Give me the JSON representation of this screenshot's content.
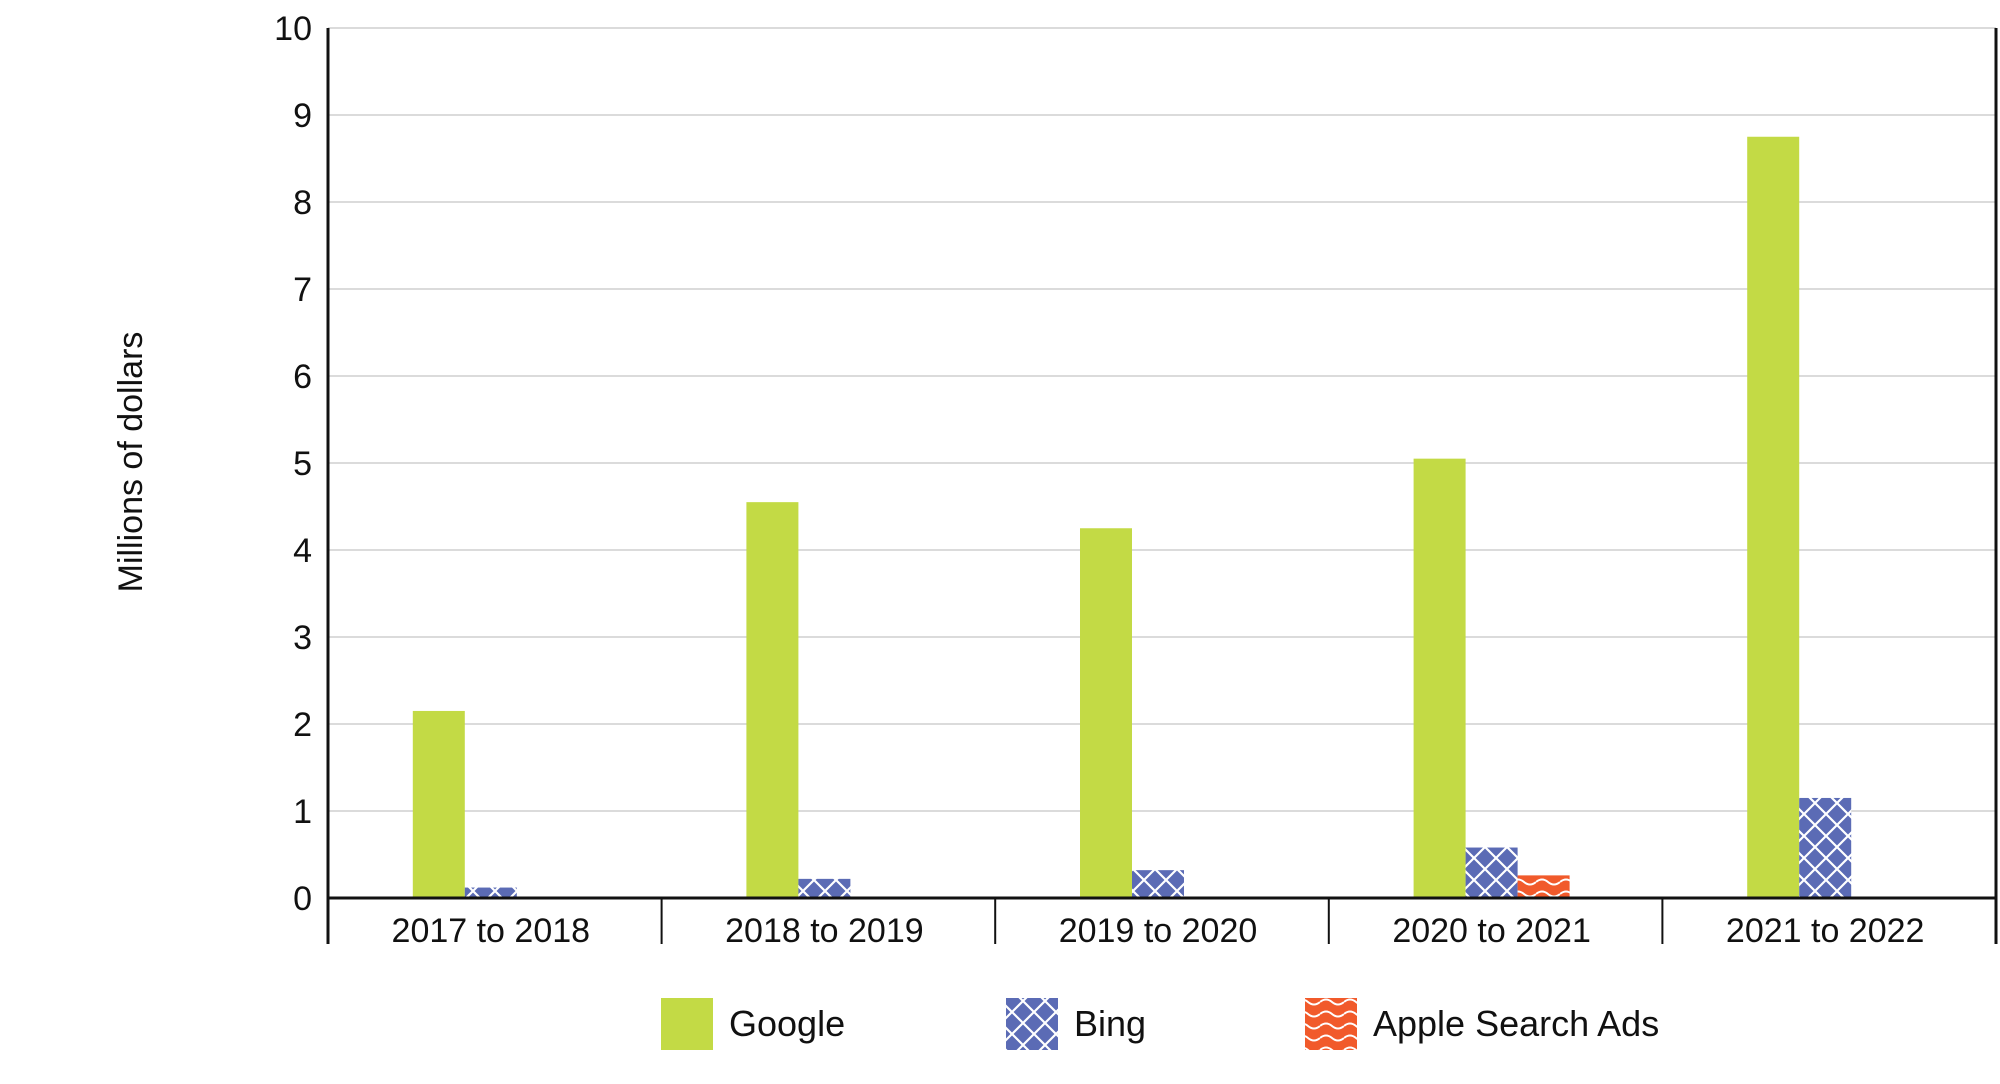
{
  "chart_data": {
    "type": "bar",
    "title": "",
    "xlabel": "",
    "ylabel": "Millions of dollars",
    "ylim": [
      0,
      10
    ],
    "yticks": [
      0,
      1,
      2,
      3,
      4,
      5,
      6,
      7,
      8,
      9,
      10
    ],
    "grid": true,
    "legend_position": "bottom",
    "categories": [
      "2017 to 2018",
      "2018 to 2019",
      "2019 to 2020",
      "2020 to 2021",
      "2021 to 2022"
    ],
    "series": [
      {
        "name": "Google",
        "color": "#c3da45",
        "pattern": "solid",
        "values": [
          2.15,
          4.55,
          4.25,
          5.05,
          8.75
        ]
      },
      {
        "name": "Bing",
        "color": "#5b6bb5",
        "pattern": "crosshatch",
        "values": [
          0.12,
          0.22,
          0.32,
          0.58,
          1.15
        ]
      },
      {
        "name": "Apple Search Ads",
        "color": "#f15a2b",
        "pattern": "wave",
        "values": [
          0,
          0,
          0,
          0.26,
          0
        ]
      }
    ]
  }
}
